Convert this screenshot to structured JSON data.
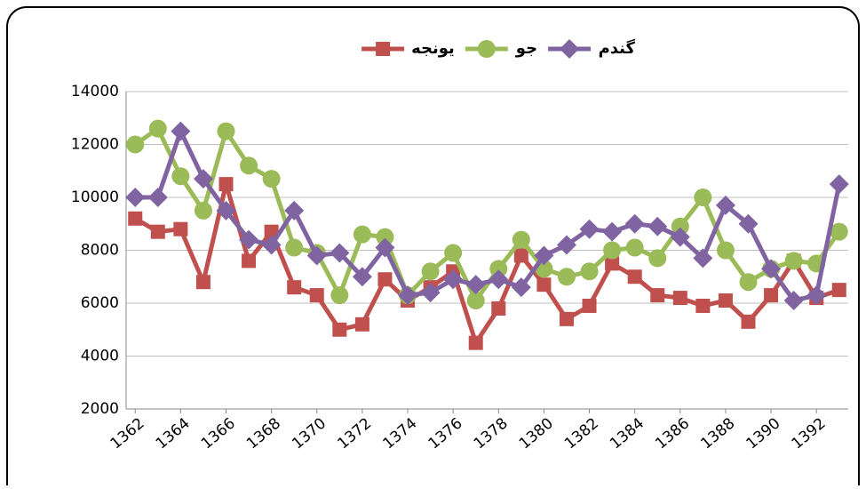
{
  "chart_data": {
    "type": "line",
    "x": [
      1362,
      1363,
      1364,
      1365,
      1366,
      1367,
      1368,
      1369,
      1370,
      1371,
      1372,
      1373,
      1374,
      1375,
      1376,
      1377,
      1378,
      1379,
      1380,
      1381,
      1382,
      1383,
      1384,
      1385,
      1386,
      1387,
      1388,
      1389,
      1390,
      1391,
      1392,
      1393
    ],
    "xlim": [
      1361.6,
      1393.4
    ],
    "xticks": [
      1362,
      1364,
      1366,
      1368,
      1370,
      1372,
      1374,
      1376,
      1378,
      1380,
      1382,
      1384,
      1386,
      1388,
      1390,
      1392
    ],
    "ylim": [
      2000,
      14000
    ],
    "yticks": [
      2000,
      4000,
      6000,
      8000,
      10000,
      12000,
      14000
    ],
    "grid": true,
    "legend": "top",
    "series": [
      {
        "name": "گندم",
        "color": "#8064a2",
        "marker": "diamond",
        "values": [
          10000,
          10000,
          12500,
          10700,
          9500,
          8400,
          8200,
          9500,
          7800,
          7900,
          7000,
          8100,
          6300,
          6400,
          6900,
          6700,
          6900,
          6600,
          7800,
          8200,
          8800,
          8700,
          9000,
          8900,
          8500,
          7700,
          9700,
          9000,
          7300,
          6100,
          6300,
          10500
        ]
      },
      {
        "name": "جو",
        "color": "#9bbb59",
        "marker": "circle",
        "values": [
          12000,
          12600,
          10800,
          9500,
          12500,
          11200,
          10700,
          8100,
          7900,
          6300,
          8600,
          8500,
          6300,
          7200,
          7900,
          6100,
          7300,
          8400,
          7300,
          7000,
          7200,
          8000,
          8100,
          7700,
          8900,
          10000,
          8000,
          6800,
          7300,
          7600,
          7500,
          8700
        ]
      },
      {
        "name": "یونجه",
        "color": "#c0504d",
        "marker": "square",
        "values": [
          9200,
          8700,
          8800,
          6800,
          10500,
          7600,
          8700,
          6600,
          6300,
          5000,
          5200,
          6900,
          6100,
          6600,
          7200,
          4500,
          5800,
          7800,
          6700,
          5400,
          5900,
          7500,
          7000,
          6300,
          6200,
          5900,
          6100,
          5300,
          6300,
          7600,
          6200,
          6500
        ]
      }
    ]
  }
}
